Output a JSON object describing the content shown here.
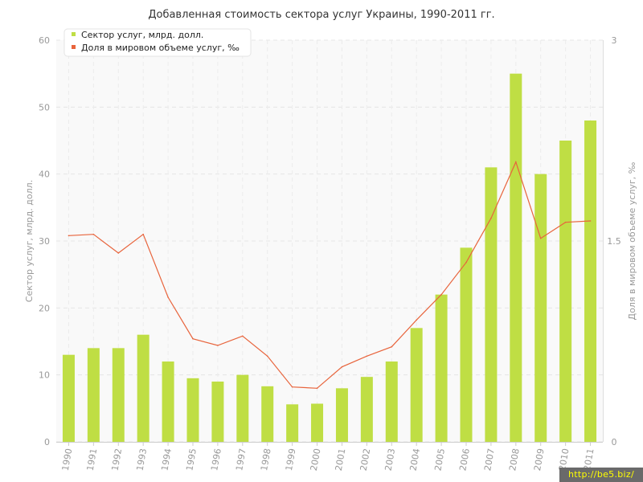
{
  "chart_data": {
    "type": "bar",
    "title": "Добавленная стоимость сектора услуг Украины, 1990-2011 гг.",
    "categories": [
      "1990",
      "1991",
      "1992",
      "1993",
      "1994",
      "1995",
      "1996",
      "1997",
      "1998",
      "1999",
      "2000",
      "2001",
      "2002",
      "2003",
      "2004",
      "2005",
      "2006",
      "2007",
      "2008",
      "2009",
      "2010",
      "2011"
    ],
    "series": [
      {
        "name": "Сектор услуг, млрд. долл.",
        "type": "bar",
        "axis": "left",
        "color": "#bfde44",
        "values": [
          13,
          14,
          14,
          16,
          12,
          9.5,
          9,
          10,
          8.3,
          5.6,
          5.7,
          8,
          9.7,
          12,
          17,
          22,
          29,
          41,
          55,
          40,
          45,
          48
        ]
      },
      {
        "name": "Доля в мировом объеме услуг, ‰",
        "type": "line",
        "axis": "right",
        "color": "#e8643c",
        "values": [
          1.54,
          1.55,
          1.41,
          1.55,
          1.08,
          0.77,
          0.72,
          0.79,
          0.64,
          0.41,
          0.4,
          0.56,
          0.64,
          0.71,
          0.91,
          1.1,
          1.34,
          1.67,
          2.09,
          1.52,
          1.64,
          1.65
        ]
      }
    ],
    "ylabel": "Сектор услуг, млрд. долл.",
    "ylim": [
      0,
      60
    ],
    "yticks": [
      "0",
      "10",
      "20",
      "30",
      "40",
      "50",
      "60"
    ],
    "y2label": "Доля в мировом объеме услуг, ‰",
    "y2lim": [
      0,
      3
    ],
    "y2ticks": [
      "0",
      "1.5",
      "3"
    ],
    "grid": true,
    "legend_position": "top-left"
  },
  "watermark": "http://be5.biz/"
}
